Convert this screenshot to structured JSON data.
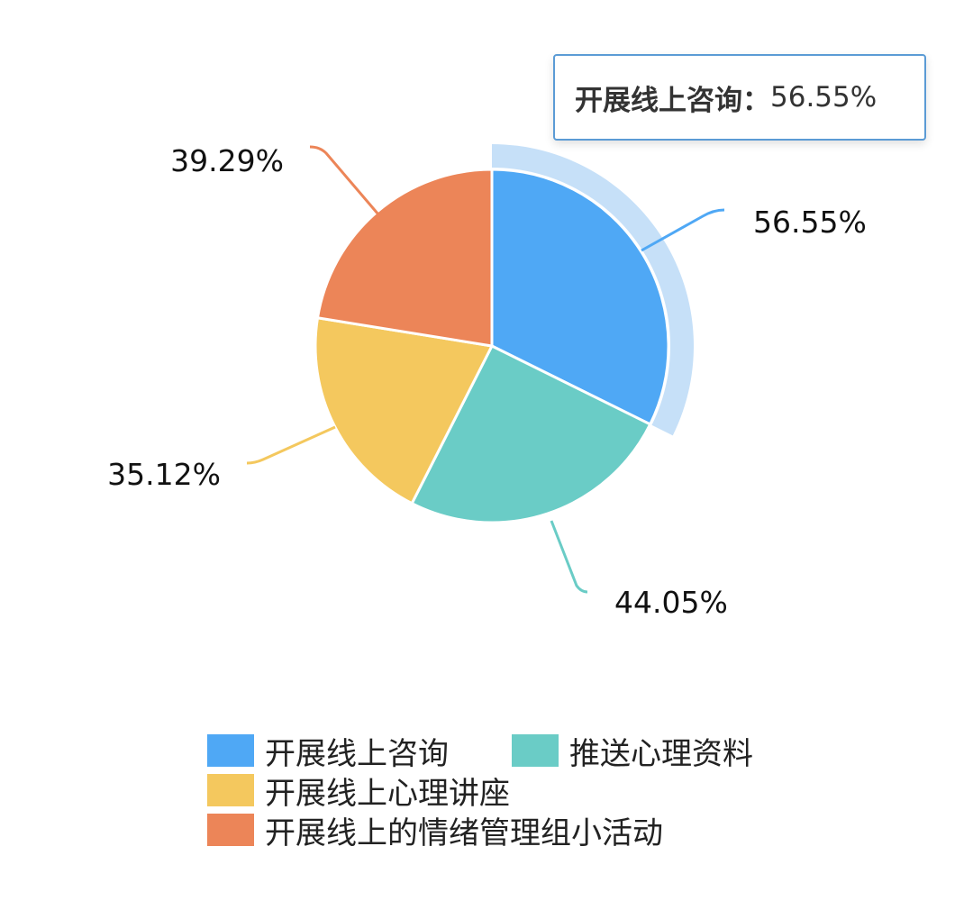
{
  "chart_data": {
    "type": "pie",
    "categories": [
      "开展线上咨询",
      "推送心理资料",
      "开展线上心理讲座",
      "开展线上的情绪管理组小活动"
    ],
    "values": [
      56.55,
      44.05,
      35.12,
      39.29
    ],
    "labels": [
      "56.55%",
      "44.05%",
      "35.12%",
      "39.29%"
    ],
    "colors": [
      "#4fa8f5",
      "#6accc6",
      "#f4c85e",
      "#ec8558"
    ],
    "highlight_index": 0,
    "highlight_color": "#c6e0f8",
    "legend_placement": "bottom",
    "tooltip": {
      "name": "开展线上咨询",
      "separator": "：",
      "value": "56.55%"
    }
  }
}
